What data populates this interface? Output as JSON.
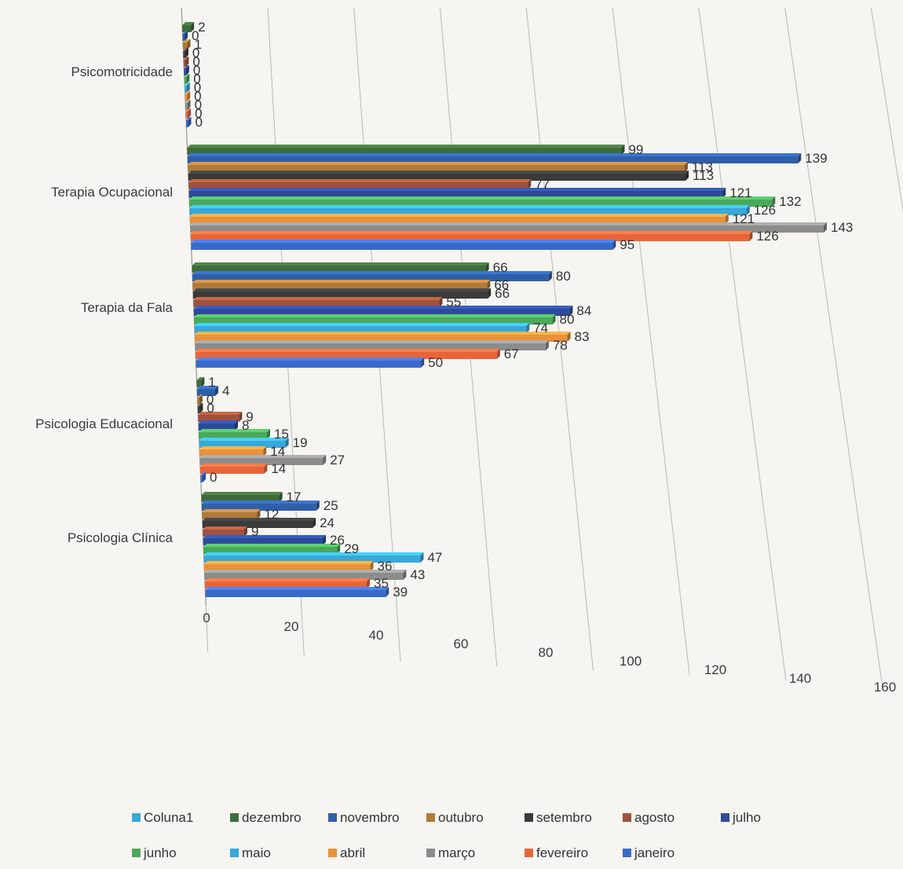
{
  "chart_data": {
    "type": "bar",
    "orientation": "horizontal",
    "three_d": true,
    "grid": true,
    "legend_position": "bottom",
    "categories": [
      "Psicomotricidade",
      "Terapia Ocupacional",
      "Terapia da Fala",
      "Psicologia Educacional",
      "Psicologia Clínica"
    ],
    "xlim": [
      0,
      160
    ],
    "x_ticks": [
      0,
      20,
      40,
      60,
      80,
      100,
      120,
      140,
      160
    ],
    "series": [
      {
        "name": "dezembro",
        "color": "#3f6b3a",
        "values": [
          2,
          99,
          66,
          1,
          17
        ]
      },
      {
        "name": "novembro",
        "color": "#2f5fa8",
        "values": [
          0,
          139,
          80,
          4,
          25
        ]
      },
      {
        "name": "outubro",
        "color": "#b07a3a",
        "values": [
          1,
          113,
          66,
          0,
          12
        ]
      },
      {
        "name": "setembro",
        "color": "#3a3a3a",
        "values": [
          0,
          113,
          66,
          0,
          24
        ]
      },
      {
        "name": "agosto",
        "color": "#a0523a",
        "values": [
          0,
          77,
          55,
          9,
          9
        ]
      },
      {
        "name": "julho",
        "color": "#2d4a9a",
        "values": [
          0,
          121,
          84,
          8,
          26
        ]
      },
      {
        "name": "junho",
        "color": "#4aa85a",
        "values": [
          0,
          132,
          80,
          15,
          29
        ]
      },
      {
        "name": "maio",
        "color": "#38a8d8",
        "values": [
          0,
          126,
          74,
          19,
          47
        ]
      },
      {
        "name": "abril",
        "color": "#e8913a",
        "values": [
          0,
          121,
          83,
          14,
          36
        ]
      },
      {
        "name": "março",
        "color": "#8c8c8c",
        "values": [
          0,
          143,
          78,
          27,
          43
        ]
      },
      {
        "name": "fevereiro",
        "color": "#e8653a",
        "values": [
          0,
          126,
          67,
          14,
          35
        ]
      },
      {
        "name": "janeiro",
        "color": "#3a6ac8",
        "values": [
          0,
          95,
          50,
          0,
          39
        ]
      }
    ],
    "legend": [
      {
        "name": "Coluna1",
        "color": "#38a8d8"
      },
      {
        "name": "dezembro",
        "color": "#3f6b3a"
      },
      {
        "name": "novembro",
        "color": "#2f5fa8"
      },
      {
        "name": "outubro",
        "color": "#b07a3a"
      },
      {
        "name": "setembro",
        "color": "#3a3a3a"
      },
      {
        "name": "agosto",
        "color": "#a0523a"
      },
      {
        "name": "julho",
        "color": "#2d4a9a"
      },
      {
        "name": "junho",
        "color": "#4aa85a"
      },
      {
        "name": "maio",
        "color": "#38a8d8"
      },
      {
        "name": "abril",
        "color": "#e8913a"
      },
      {
        "name": "março",
        "color": "#8c8c8c"
      },
      {
        "name": "fevereiro",
        "color": "#e8653a"
      },
      {
        "name": "janeiro",
        "color": "#3a6ac8"
      }
    ]
  }
}
